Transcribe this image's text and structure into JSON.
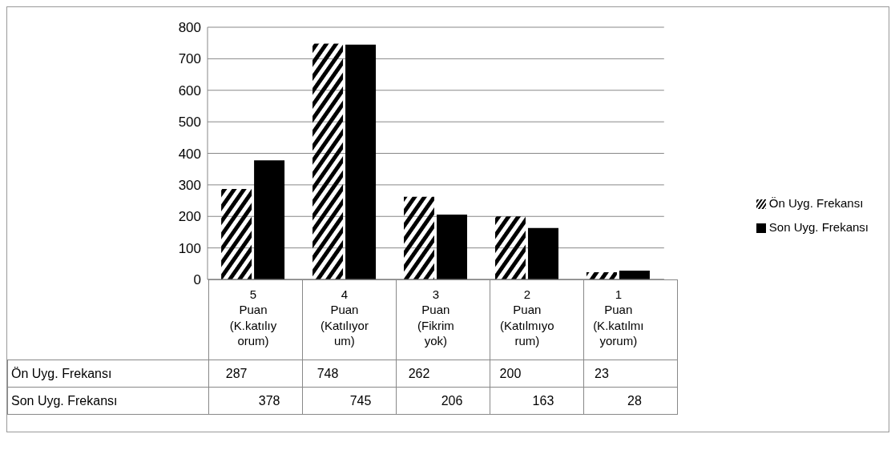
{
  "chart_data": {
    "type": "bar",
    "categories": [
      "5 Puan (K.katılıyorum)",
      "4 Puan (Katılıyorum)",
      "3 Puan (Fikrim yok)",
      "2 Puan (Katılmıyorum)",
      "1 Puan (K.katılmıyorum)"
    ],
    "series": [
      {
        "name": "Ön Uyg. Frekansı",
        "color": "#000000",
        "values": [
          287,
          748,
          262,
          200,
          23
        ]
      },
      {
        "name": "Son Uyg. Frekansı",
        "color": "#000000",
        "values": [
          378,
          745,
          206,
          163,
          28
        ]
      }
    ],
    "ylim": [
      0,
      800
    ],
    "yticks": [
      0,
      100,
      200,
      300,
      400,
      500,
      600,
      700,
      800
    ],
    "grid": "y",
    "legend": "right",
    "data_labels": true
  }
}
